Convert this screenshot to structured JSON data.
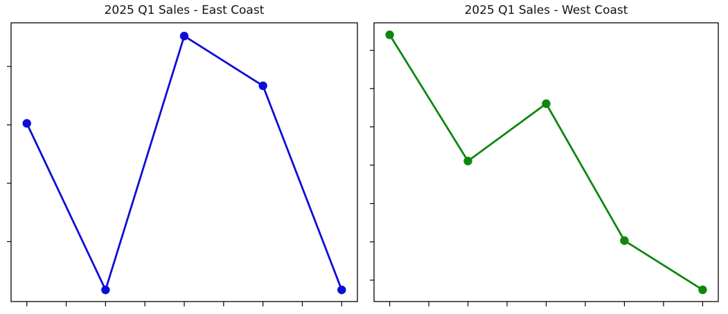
{
  "figure": {
    "background": "#ffffff",
    "spine_color": "#000000",
    "tick_color": "#000000"
  },
  "chart_data": [
    {
      "type": "line",
      "title": "2025 Q1 Sales - East Coast",
      "series_color": "#0d0dd8",
      "marker": "circle",
      "x": [
        0,
        1,
        2,
        3,
        4
      ],
      "values": [
        65.6,
        0,
        100,
        80.4,
        0
      ],
      "value_scale": "relative-units-0-100 (axis tick labels cropped out of screenshot)",
      "xlim": [
        -0.2,
        4.2
      ],
      "ylim": [
        -4.6,
        105.2
      ],
      "x_ticks": [
        0,
        0.5,
        1,
        1.5,
        2,
        2.5,
        3,
        3.5,
        4
      ],
      "y_ticks": [
        19.0,
        42.0,
        65.0,
        88.0
      ],
      "tick_labels_visible": false,
      "grid": false,
      "legend": null
    },
    {
      "type": "line",
      "title": "2025 Q1 Sales - West Coast",
      "series_color": "#0e870e",
      "marker": "circle",
      "x": [
        0,
        1,
        2,
        3,
        4
      ],
      "values": [
        100,
        50.5,
        73.0,
        19.3,
        0
      ],
      "value_scale": "relative-units-0-100 (axis tick labels cropped out of screenshot)",
      "xlim": [
        -0.2,
        4.2
      ],
      "ylim": [
        -4.6,
        104.7
      ],
      "x_ticks": [
        0,
        0.5,
        1,
        1.5,
        2,
        2.5,
        3,
        3.5,
        4
      ],
      "y_ticks": [
        3.8,
        18.8,
        33.8,
        48.9,
        63.9,
        78.9,
        93.9
      ],
      "tick_labels_visible": false,
      "grid": false,
      "legend": null
    }
  ]
}
